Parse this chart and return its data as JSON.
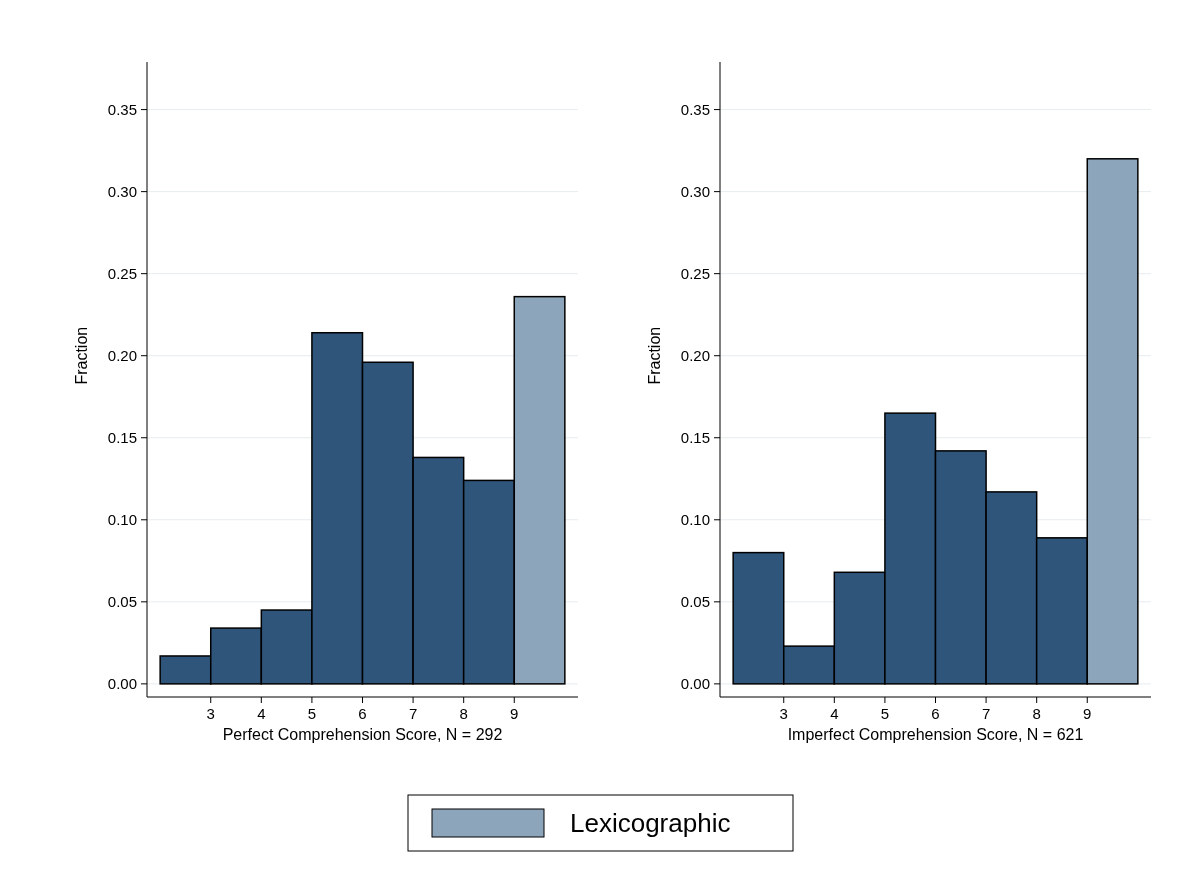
{
  "chart_data": [
    {
      "type": "histogram",
      "xlabel": "Perfect Comprehension Score, N = 292",
      "ylabel": "Fraction",
      "bins": [
        2,
        3,
        4,
        5,
        6,
        7,
        8,
        9,
        10
      ],
      "series": [
        {
          "color": "#30557a",
          "values": [
            0.017,
            0.034,
            0.045,
            0.214,
            0.196,
            0.138,
            0.124,
            null
          ]
        },
        {
          "name": "Lexicographic",
          "color": "#8da5bb",
          "values": [
            null,
            null,
            null,
            null,
            null,
            null,
            null,
            0.236
          ]
        }
      ],
      "xlim": [
        1.74,
        10.26
      ],
      "xticks": [
        3,
        4,
        5,
        6,
        7,
        8,
        9
      ],
      "ylim": [
        -0.008,
        0.379
      ],
      "yticks": [
        {
          "value": 0,
          "label": "0.00"
        },
        0.05,
        {
          "value": 0.1,
          "label": "0.10"
        },
        0.15,
        {
          "value": 0.2,
          "label": "0.20"
        },
        0.25,
        {
          "value": 0.3,
          "label": "0.30"
        },
        0.35
      ],
      "grid": "y",
      "legend": "bottom"
    },
    {
      "type": "histogram",
      "xlabel": "Imperfect Comprehension Score, N = 621",
      "ylabel": "Fraction",
      "bins": [
        2,
        3,
        4,
        5,
        6,
        7,
        8,
        9,
        10
      ],
      "series": [
        {
          "color": "#30557a",
          "values": [
            0.08,
            0.023,
            0.068,
            0.165,
            0.142,
            0.117,
            0.089,
            null
          ]
        },
        {
          "color": "#8da5bb",
          "values": [
            null,
            null,
            null,
            null,
            null,
            null,
            null,
            0.32
          ]
        }
      ],
      "xlim": [
        1.74,
        10.26
      ],
      "xticks": [
        3,
        4,
        5,
        6,
        7,
        8,
        9
      ],
      "ylim": [
        -0.008,
        0.379
      ],
      "yticks": [
        {
          "value": 0,
          "label": "0.00"
        },
        0.05,
        {
          "value": 0.1,
          "label": "0.10"
        },
        0.15,
        {
          "value": 0.2,
          "label": "0.20"
        },
        0.25,
        {
          "value": 0.3,
          "label": "0.30"
        },
        0.35
      ],
      "grid": "y"
    }
  ]
}
